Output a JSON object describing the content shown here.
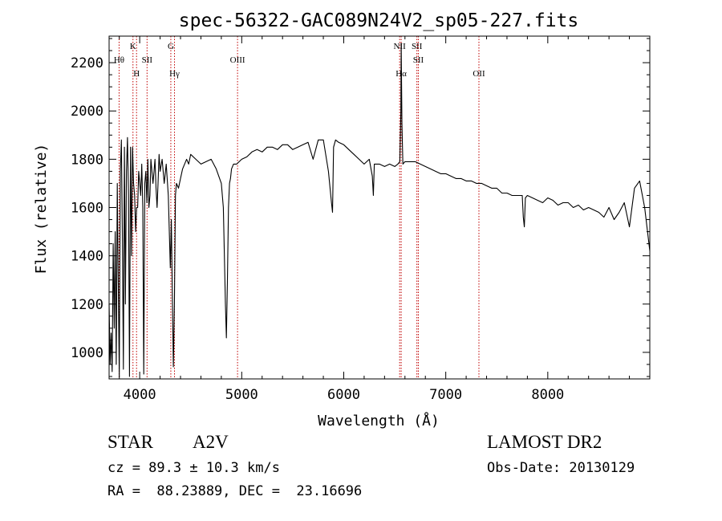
{
  "chart_data": {
    "type": "line",
    "title": "spec-56322-GAC089N24V2_sp05-227.fits",
    "xlabel": "Wavelength (Å)",
    "ylabel": "Flux (relative)",
    "xlim": [
      3700,
      9000
    ],
    "ylim": [
      890,
      2310
    ],
    "xticks": [
      4000,
      5000,
      6000,
      7000,
      8000
    ],
    "xtick_labels": [
      "4000",
      "5000",
      "6000",
      "7000",
      "8000"
    ],
    "yticks": [
      1000,
      1200,
      1400,
      1600,
      1800,
      2000,
      2200
    ],
    "ytick_labels": [
      "1000",
      "1200",
      "1400",
      "1600",
      "1800",
      "2000",
      "2200"
    ],
    "grid": false,
    "line_color": "#000000",
    "marker_color": "#c00000",
    "spectral_lines": [
      {
        "label": "Hθ",
        "wavelength": 3798,
        "row": 2
      },
      {
        "label": "K",
        "wavelength": 3934,
        "row": 1
      },
      {
        "label": "H",
        "wavelength": 3969,
        "row": 3
      },
      {
        "label": "SII",
        "wavelength": 4072,
        "row": 2
      },
      {
        "label": "G",
        "wavelength": 4305,
        "row": 1
      },
      {
        "label": "Hγ",
        "wavelength": 4341,
        "row": 3
      },
      {
        "label": "OIII",
        "wavelength": 4959,
        "row": 2
      },
      {
        "label": "NII",
        "wavelength": 6548,
        "row": 1
      },
      {
        "label": "Hα",
        "wavelength": 6563,
        "row": 3
      },
      {
        "label": "SII",
        "wavelength": 6717,
        "row": 1
      },
      {
        "label": "SII",
        "wavelength": 6731,
        "row": 2
      },
      {
        "label": "OII",
        "wavelength": 7325,
        "row": 3
      }
    ],
    "series": [
      {
        "x": [
          3700,
          3710,
          3720,
          3730,
          3740,
          3750,
          3760,
          3770,
          3780,
          3790,
          3800,
          3810,
          3820,
          3830,
          3840,
          3850,
          3860,
          3870,
          3880,
          3890,
          3900,
          3910,
          3920,
          3930,
          3940,
          3950,
          3960,
          3970,
          3980,
          3990,
          4000,
          4010,
          4020,
          4030,
          4040,
          4050,
          4060,
          4070,
          4080,
          4090,
          4100,
          4110,
          4120,
          4130,
          4140,
          4150,
          4160,
          4170,
          4180,
          4190,
          4200,
          4220,
          4240,
          4260,
          4280,
          4300,
          4310,
          4320,
          4330,
          4340,
          4350,
          4360,
          4380,
          4400,
          4420,
          4440,
          4460,
          4480,
          4500,
          4550,
          4600,
          4650,
          4700,
          4750,
          4800,
          4820,
          4840,
          4850,
          4860,
          4870,
          4880,
          4890,
          4900,
          4920,
          4950,
          5000,
          5050,
          5100,
          5150,
          5200,
          5250,
          5300,
          5350,
          5400,
          5450,
          5500,
          5550,
          5600,
          5650,
          5700,
          5750,
          5800,
          5850,
          5880,
          5890,
          5900,
          5920,
          5950,
          6000,
          6050,
          6100,
          6150,
          6200,
          6250,
          6280,
          6290,
          6300,
          6350,
          6400,
          6450,
          6500,
          6530,
          6550,
          6560,
          6563,
          6570,
          6580,
          6600,
          6650,
          6700,
          6750,
          6800,
          6850,
          6900,
          6950,
          7000,
          7050,
          7100,
          7150,
          7200,
          7250,
          7300,
          7350,
          7400,
          7450,
          7500,
          7550,
          7600,
          7650,
          7700,
          7750,
          7760,
          7770,
          7780,
          7800,
          7850,
          7900,
          7950,
          8000,
          8050,
          8100,
          8150,
          8200,
          8250,
          8300,
          8350,
          8400,
          8450,
          8500,
          8550,
          8600,
          8650,
          8700,
          8750,
          8800,
          8850,
          8900,
          8950,
          9000
        ],
        "y": [
          1200,
          950,
          1080,
          920,
          1450,
          1100,
          1500,
          950,
          1700,
          1300,
          900,
          1750,
          1880,
          1500,
          930,
          1850,
          1200,
          1750,
          1890,
          1650,
          900,
          1850,
          1400,
          1850,
          1700,
          1650,
          1500,
          1600,
          1600,
          1750,
          1700,
          1650,
          1780,
          1600,
          910,
          1700,
          1750,
          1620,
          1800,
          1600,
          1650,
          1800,
          1750,
          1700,
          1750,
          1800,
          1680,
          1600,
          1700,
          1820,
          1750,
          1800,
          1700,
          1780,
          1650,
          1350,
          1550,
          1250,
          940,
          1200,
          1650,
          1700,
          1680,
          1720,
          1760,
          1780,
          1800,
          1780,
          1820,
          1800,
          1780,
          1790,
          1800,
          1760,
          1700,
          1600,
          1200,
          1060,
          1300,
          1600,
          1700,
          1720,
          1760,
          1780,
          1780,
          1800,
          1810,
          1830,
          1840,
          1830,
          1850,
          1850,
          1840,
          1860,
          1860,
          1840,
          1850,
          1860,
          1870,
          1800,
          1880,
          1880,
          1750,
          1620,
          1580,
          1850,
          1880,
          1870,
          1860,
          1840,
          1820,
          1800,
          1780,
          1800,
          1730,
          1650,
          1780,
          1780,
          1770,
          1780,
          1770,
          1780,
          1790,
          2000,
          2280,
          1950,
          1780,
          1790,
          1790,
          1790,
          1780,
          1770,
          1760,
          1750,
          1740,
          1740,
          1730,
          1720,
          1720,
          1710,
          1710,
          1700,
          1700,
          1690,
          1680,
          1680,
          1660,
          1660,
          1650,
          1650,
          1650,
          1560,
          1520,
          1640,
          1650,
          1640,
          1630,
          1620,
          1640,
          1630,
          1610,
          1620,
          1620,
          1600,
          1610,
          1590,
          1600,
          1590,
          1580,
          1560,
          1600,
          1550,
          1580,
          1620,
          1520,
          1680,
          1710,
          1600,
          1420
        ]
      }
    ]
  },
  "info": {
    "object_class": "STAR",
    "subclass": "A2V",
    "survey": "LAMOST DR2",
    "redshift_line": "cz = 89.3 ± 10.3 km/s",
    "obs_date_line": "Obs-Date: 20130129",
    "coords_line": "RA =  88.23889, DEC =  23.16696"
  }
}
